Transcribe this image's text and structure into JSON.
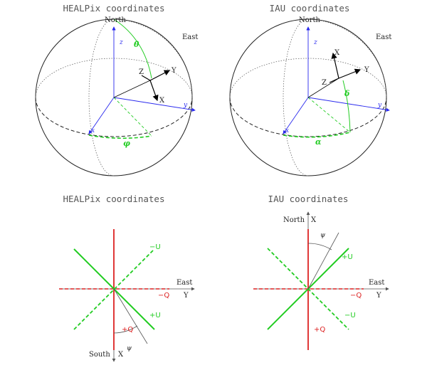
{
  "colors": {
    "sphere": "#222222",
    "axis_blue": "#2a2aee",
    "green": "#22cc22",
    "red": "#dd2222",
    "black": "#000000"
  },
  "top_left": {
    "title": "HEALPix coordinates",
    "north": "North",
    "east": "East",
    "axis_x": "x",
    "axis_y": "y",
    "axis_z": "z",
    "basis_x": "X",
    "basis_y": "Y",
    "basis_z": "Z",
    "angle_polar": "θ",
    "angle_azimuth": "φ"
  },
  "top_right": {
    "title": "IAU coordinates",
    "north": "North",
    "east": "East",
    "axis_x": "x",
    "axis_y": "y",
    "axis_z": "z",
    "basis_x": "X",
    "basis_y": "Y",
    "basis_z": "Z",
    "angle_polar": "δ",
    "angle_azimuth": "α"
  },
  "bottom_left": {
    "title": "HEALPix coordinates",
    "east": "East",
    "y_axis": "Y",
    "south": "South",
    "x_axis": "X",
    "plus_q": "+Q",
    "minus_q": "−Q",
    "plus_u": "+U",
    "minus_u": "−U",
    "psi": "ψ"
  },
  "bottom_right": {
    "title": "IAU coordinates",
    "north": "North",
    "x_axis": "X",
    "east": "East",
    "y_axis": "Y",
    "plus_q": "+Q",
    "minus_q": "−Q",
    "plus_u": "+U",
    "minus_u": "−U",
    "psi": "ψ"
  }
}
